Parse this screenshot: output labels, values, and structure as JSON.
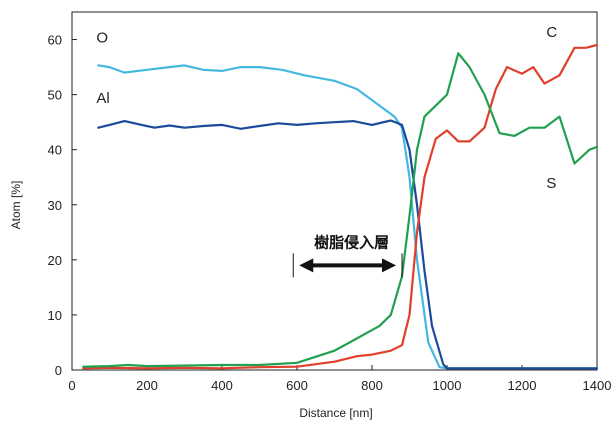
{
  "chart_data": {
    "type": "line",
    "title": "",
    "xlabel": "Distance [nm]",
    "ylabel": "Atom [%]",
    "xlim": [
      0,
      1400
    ],
    "ylim": [
      0,
      65
    ],
    "xticks": [
      0,
      200,
      400,
      600,
      800,
      1000,
      1200,
      1400
    ],
    "yticks": [
      0,
      10,
      20,
      30,
      40,
      50,
      60
    ],
    "grid": false,
    "legend": "none",
    "series": [
      {
        "name": "O",
        "color": "#45b8e0",
        "x": [
          70,
          100,
          140,
          200,
          260,
          300,
          350,
          400,
          450,
          500,
          560,
          620,
          700,
          760,
          820,
          860,
          880,
          900,
          920,
          950,
          980,
          1000,
          1100,
          1200,
          1300,
          1400
        ],
        "y": [
          55.3,
          55,
          54,
          54.5,
          55,
          55.3,
          54.5,
          54.3,
          55,
          55,
          54.5,
          53.5,
          52.5,
          51,
          48,
          46,
          44,
          35,
          20,
          5,
          0.5,
          0.3,
          0.3,
          0.3,
          0.3,
          0.3
        ]
      },
      {
        "name": "Al",
        "color": "#1b4a9c",
        "x": [
          70,
          100,
          140,
          180,
          220,
          260,
          300,
          350,
          400,
          450,
          500,
          550,
          600,
          650,
          700,
          750,
          800,
          850,
          880,
          900,
          920,
          940,
          960,
          990,
          1000,
          1100,
          1200,
          1300,
          1400
        ],
        "y": [
          44,
          44.5,
          45.2,
          44.6,
          44,
          44.4,
          44,
          44.3,
          44.5,
          43.8,
          44.3,
          44.8,
          44.5,
          44.8,
          45,
          45.2,
          44.5,
          45.3,
          44.5,
          40,
          30,
          18,
          8,
          1,
          0.3,
          0.3,
          0.3,
          0.3,
          0.3
        ]
      },
      {
        "name": "C",
        "color": "#e0402b",
        "x": [
          30,
          100,
          200,
          300,
          400,
          500,
          600,
          700,
          760,
          800,
          850,
          880,
          900,
          920,
          940,
          970,
          1000,
          1030,
          1060,
          1100,
          1130,
          1160,
          1200,
          1230,
          1260,
          1300,
          1340,
          1370,
          1400
        ],
        "y": [
          0.3,
          0.4,
          0.3,
          0.4,
          0.3,
          0.5,
          0.6,
          1.5,
          2.5,
          2.8,
          3.5,
          4.5,
          10,
          25,
          35,
          42,
          43.5,
          41.5,
          41.5,
          44,
          51,
          55,
          53.8,
          55,
          52,
          53.5,
          58.5,
          58.5,
          59
        ]
      },
      {
        "name": "S",
        "color": "#21a050",
        "x": [
          30,
          100,
          150,
          200,
          300,
          400,
          450,
          500,
          600,
          700,
          740,
          780,
          820,
          850,
          880,
          900,
          920,
          940,
          970,
          1000,
          1030,
          1060,
          1100,
          1140,
          1180,
          1220,
          1260,
          1300,
          1340,
          1380,
          1400
        ],
        "y": [
          0.6,
          0.7,
          0.9,
          0.7,
          0.8,
          0.9,
          0.9,
          0.9,
          1.3,
          3.5,
          5,
          6.5,
          8,
          10,
          17,
          28,
          40,
          46,
          48,
          50,
          57.5,
          55,
          50,
          43,
          42.5,
          44,
          44,
          46,
          37.5,
          40,
          40.5
        ]
      }
    ],
    "series_labels": [
      {
        "text": "O",
        "x": 65,
        "y": 59.5
      },
      {
        "text": "Al",
        "x": 65,
        "y": 48.5
      },
      {
        "text": "C",
        "x": 1265,
        "y": 60.5
      },
      {
        "text": "S",
        "x": 1265,
        "y": 33
      }
    ],
    "annotation": {
      "text": "樹脂侵入層",
      "from": 590,
      "to": 880,
      "y": 19
    }
  }
}
